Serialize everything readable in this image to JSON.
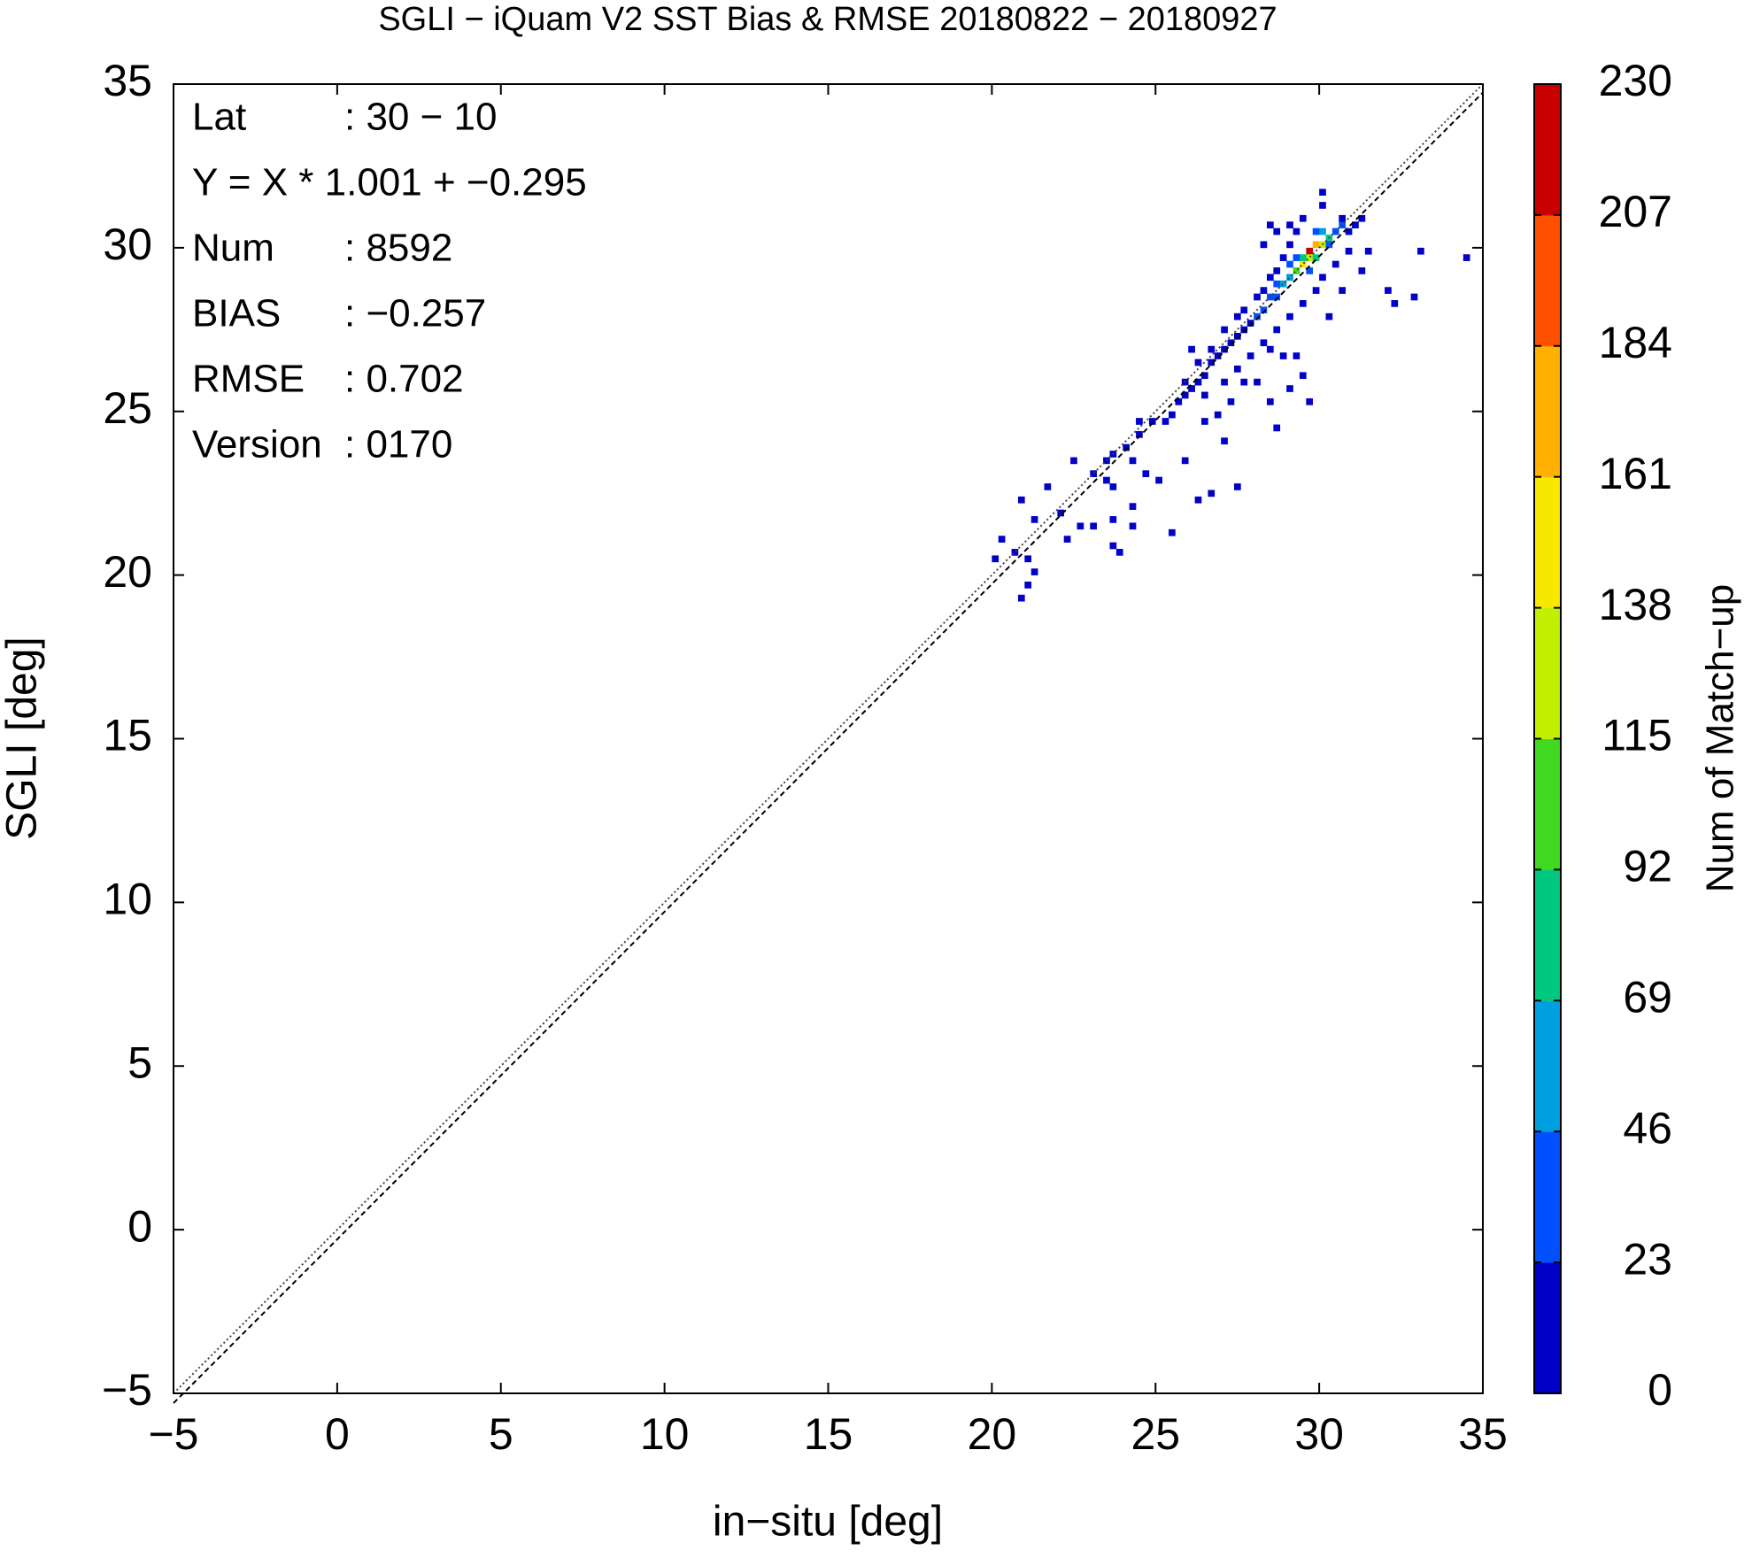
{
  "chart_data": {
    "type": "heatmap",
    "title": "SGLI − iQuam V2 SST Bias & RMSE 20180822 − 20180927",
    "x_label": "in−situ [deg]",
    "y_label": "SGLI [deg]",
    "xlim": [
      -5,
      35
    ],
    "ylim": [
      -5,
      35
    ],
    "xticks": [
      {
        "value": -5,
        "label": "−5"
      },
      0,
      5,
      10,
      15,
      20,
      25,
      30,
      35
    ],
    "yticks": [
      {
        "value": -5,
        "label": "−5"
      },
      0,
      5,
      10,
      15,
      20,
      25,
      30,
      35
    ],
    "annotations": [
      {
        "label": "Lat",
        "text": ": 30 − 10"
      },
      {
        "label": "Y = X * 1.001 + −0.295"
      },
      {
        "label": "Num",
        "text": ": 8592"
      },
      {
        "label": "BIAS",
        "text": ": −0.257"
      },
      {
        "label": "RMSE",
        "text": ": 0.702"
      },
      {
        "label": "Version",
        "text": ": 0170"
      }
    ],
    "lines": [
      {
        "slope": 1,
        "intercept": 0,
        "color": "#444444",
        "style": "dotted"
      },
      {
        "slope": 1.001,
        "intercept": -0.295,
        "color": "#000000",
        "style": "dashed"
      }
    ],
    "colorbar": {
      "label": "Num of Match−up",
      "lim": [
        0,
        230
      ],
      "ticks": [
        0,
        23,
        46,
        69,
        92,
        115,
        138,
        161,
        184,
        207,
        230
      ],
      "colors": [
        "#0000c8",
        "#0050ff",
        "#00a0e0",
        "#00c880",
        "#40d820",
        "#c0f000",
        "#f8e800",
        "#ffb000",
        "#ff5000",
        "#c80000"
      ]
    },
    "x": [
      29.6,
      29.8,
      29.4,
      29.6,
      30.0,
      29.2,
      30.2,
      29.8,
      29.4,
      30.0,
      29.0,
      28.8,
      29.2,
      30.4,
      28.6,
      29.6,
      30.2,
      28.4,
      28.2,
      28.0,
      30.6,
      29.8,
      29.0,
      28.6,
      27.8,
      27.6,
      27.4,
      27.2,
      27.0,
      26.8,
      26.6,
      26.4,
      26.2,
      26.0,
      25.8,
      28.0,
      28.2,
      28.4,
      28.6,
      28.8,
      29.0,
      29.2,
      28.6,
      28.4,
      29.0,
      29.4,
      30.0,
      30.6,
      30.8,
      31.0,
      31.2,
      30.8,
      30.4,
      30.0,
      29.8,
      29.4,
      29.0,
      28.6,
      28.2,
      27.8,
      27.4,
      28.4,
      28.8,
      29.2,
      29.4,
      29.0,
      28.4,
      28.0,
      27.6,
      27.2,
      26.8,
      26.4,
      27.0,
      28.6,
      29.6,
      30.2,
      30.6,
      31.2,
      32.0,
      32.2,
      32.8,
      33.0,
      34.4,
      31.4,
      30.0,
      28.2,
      27.6,
      27.4,
      27.0,
      26.6,
      26.2,
      25.8,
      25.6,
      25.4,
      25.2,
      24.8,
      24.4,
      24.0,
      23.6,
      23.4,
      24.2,
      24.6,
      25.0,
      23.6,
      23.4,
      25.8,
      26.2,
      26.6,
      27.4,
      24.2,
      23.6,
      23.6,
      23.8,
      25.4,
      24.2,
      23.0,
      22.6,
      22.2,
      22.0,
      21.2,
      21.6,
      20.8,
      20.2,
      20.6,
      21.0,
      21.2,
      20.0,
      21.0,
      20.8,
      22.4,
      23.0,
      24.4,
      26.0,
      26.4,
      27.0
    ],
    "y": [
      29.8,
      30.0,
      29.4,
      29.6,
      30.0,
      29.2,
      30.2,
      29.6,
      29.6,
      30.4,
      29.0,
      28.8,
      29.6,
      30.4,
      28.4,
      29.2,
      30.0,
      28.4,
      28.0,
      27.8,
      30.6,
      30.4,
      29.4,
      28.8,
      27.6,
      27.4,
      27.2,
      27.0,
      26.8,
      26.6,
      26.4,
      26.0,
      25.8,
      25.6,
      25.4,
      28.4,
      28.6,
      29.0,
      29.2,
      29.6,
      30.0,
      30.4,
      30.4,
      30.6,
      30.6,
      30.8,
      31.2,
      30.8,
      30.4,
      30.6,
      30.8,
      29.8,
      29.4,
      29.0,
      28.6,
      28.2,
      27.8,
      27.4,
      27.0,
      26.6,
      26.2,
      26.8,
      26.6,
      26.6,
      26.0,
      25.6,
      25.2,
      25.8,
      25.8,
      25.2,
      24.8,
      24.6,
      24.0,
      24.4,
      25.2,
      27.8,
      28.6,
      29.2,
      28.6,
      28.2,
      28.4,
      29.8,
      29.6,
      29.8,
      31.6,
      30.0,
      28.0,
      27.8,
      27.4,
      26.8,
      26.4,
      25.8,
      25.2,
      24.8,
      24.6,
      24.6,
      24.2,
      23.8,
      23.6,
      23.4,
      23.4,
      23.0,
      22.8,
      22.6,
      22.8,
      23.4,
      22.2,
      22.4,
      22.6,
      22.0,
      21.6,
      20.8,
      20.6,
      21.2,
      21.4,
      21.4,
      21.4,
      21.0,
      21.8,
      21.6,
      22.6,
      22.2,
      21.0,
      20.6,
      20.4,
      20.0,
      20.4,
      19.6,
      19.2,
      23.4,
      23.0,
      24.6,
      26.8,
      25.4,
      25.8
    ],
    "values": [
      210,
      170,
      150,
      130,
      120,
      100,
      90,
      80,
      70,
      60,
      60,
      50,
      45,
      45,
      40,
      40,
      35,
      30,
      25,
      25,
      25,
      30,
      30,
      30,
      20,
      20,
      15,
      15,
      12,
      10,
      10,
      8,
      8,
      6,
      5,
      10,
      12,
      15,
      12,
      10,
      8,
      6,
      3,
      2,
      5,
      4,
      2,
      10,
      8,
      5,
      3,
      8,
      6,
      10,
      8,
      12,
      10,
      8,
      6,
      6,
      5,
      4,
      3,
      4,
      2,
      2,
      1,
      3,
      3,
      2,
      2,
      1,
      1,
      1,
      2,
      3,
      2,
      1,
      1,
      1,
      1,
      1,
      1,
      2,
      1,
      1,
      8,
      6,
      4,
      5,
      3,
      6,
      4,
      4,
      3,
      3,
      4,
      4,
      6,
      4,
      2,
      1,
      1,
      2,
      1,
      1,
      1,
      1,
      2,
      1,
      1,
      2,
      1,
      1,
      1,
      1,
      1,
      1,
      1,
      1,
      1,
      1,
      1,
      2,
      2,
      1,
      1,
      1,
      1,
      1,
      1,
      2,
      2,
      3,
      3
    ]
  }
}
